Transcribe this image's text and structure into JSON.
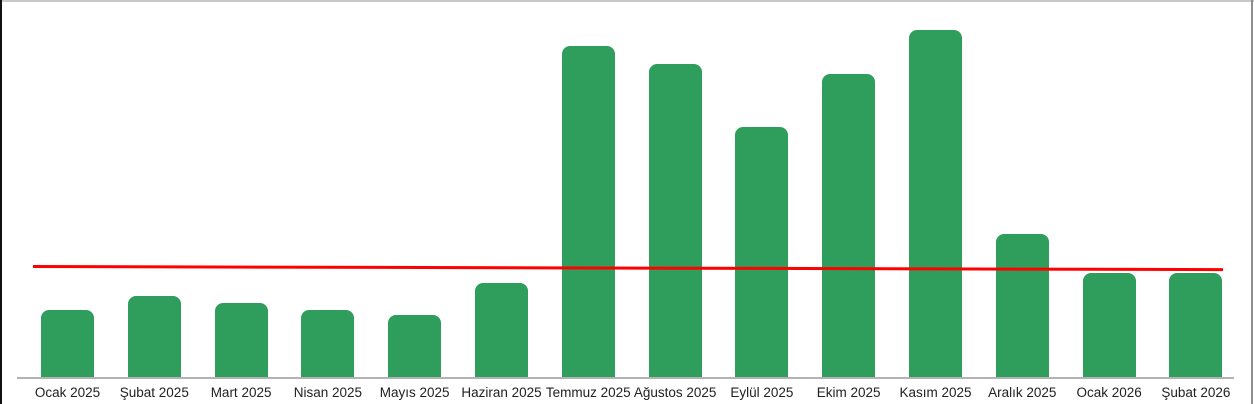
{
  "chart_data": {
    "type": "bar",
    "title": "",
    "xlabel": "",
    "ylabel": "",
    "categories": [
      "Ocak 2025",
      "Şubat 2025",
      "Mart 2025",
      "Nisan 2025",
      "Mayıs 2025",
      "Haziran 2025",
      "Temmuz 2025",
      "Ağustos 2025",
      "Eylül 2025",
      "Ekim 2025",
      "Kasım 2025",
      "Aralık 2025",
      "Ocak 2026",
      "Şubat 2026"
    ],
    "series": [
      {
        "name": "monthly-values",
        "type": "bar",
        "color": "#2f9d5c",
        "values": [
          19.8,
          23.8,
          21.8,
          19.8,
          18.3,
          27.5,
          95.4,
          90.3,
          72.2,
          87.4,
          100,
          41.5,
          30.4,
          30.4
        ]
      },
      {
        "name": "trend-line",
        "type": "line",
        "color": "#ff0000",
        "start_value": 32.1,
        "end_value": 31.2
      }
    ],
    "ylim": [
      0,
      105
    ],
    "value_units": "relative (max bar = 100, no y-axis shown)",
    "grid": false,
    "legend_position": "none",
    "y_axis_visible": false,
    "x_axis_line_color": "#b3b3b3",
    "x_label_color": "#212121"
  }
}
